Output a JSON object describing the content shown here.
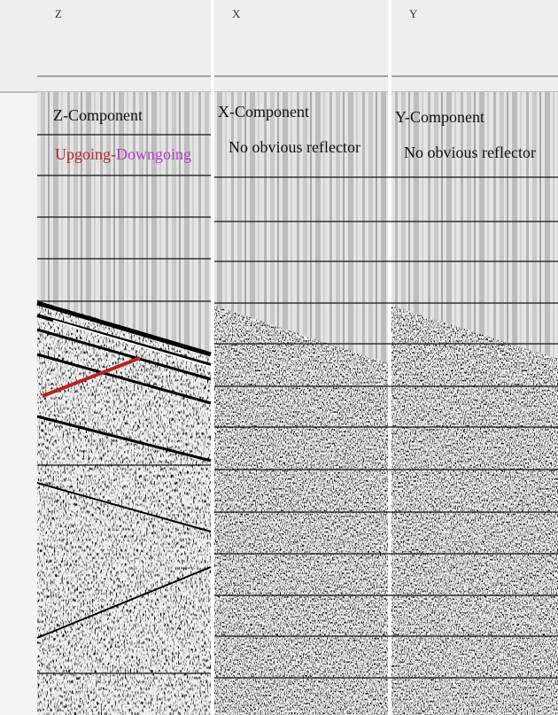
{
  "panels": [
    {
      "header": "Z",
      "title": "Z-Component",
      "note_parts": [
        "Upgoing-",
        "Downgoing"
      ]
    },
    {
      "header": "X",
      "title": "X-Component",
      "note": "No obvious reflector"
    },
    {
      "header": "Y",
      "title": "Y-Component",
      "note": "No obvious reflector"
    }
  ]
}
